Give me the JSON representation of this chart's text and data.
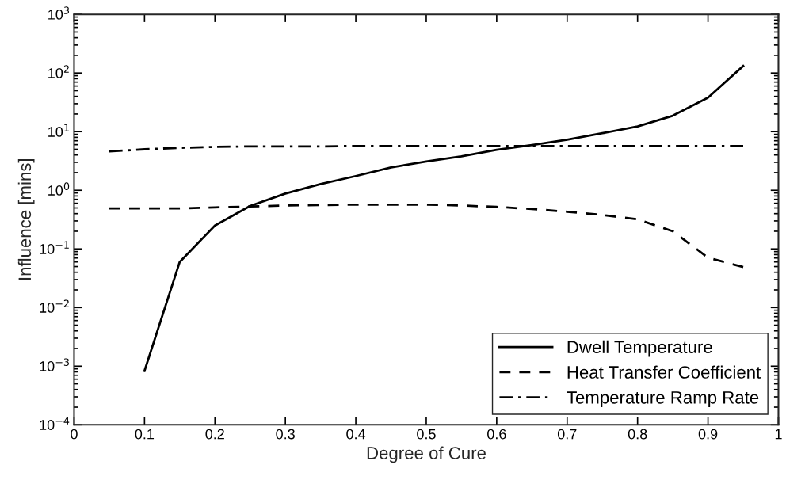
{
  "chart_data": {
    "type": "line",
    "xlabel": "Degree of Cure",
    "ylabel": "Influence [mins]",
    "log": "y",
    "grid": false,
    "legend": "bottom right",
    "xlim": [
      0,
      1
    ],
    "xticks": [
      0,
      0.1,
      0.2,
      0.3,
      0.4,
      0.5,
      0.6,
      0.7,
      0.8,
      0.9,
      1
    ],
    "ylim": [
      0.0001,
      1000
    ],
    "yticks": [
      {
        "value": 0.0001,
        "label": "10$^{−4}$"
      },
      {
        "value": 0.001,
        "label": "10$^{−3}$"
      },
      {
        "value": 0.01,
        "label": "10$^{−2}$"
      },
      {
        "value": 0.1,
        "label": "10$^{−1}$"
      },
      {
        "value": 1,
        "label": "10$^{0}$"
      },
      {
        "value": 10,
        "label": "10$^{1}$"
      },
      {
        "value": 100,
        "label": "10$^{2}$"
      },
      {
        "value": 1000,
        "label": "10$^{3}$"
      }
    ],
    "series": [
      {
        "name": "Dwell Temperature",
        "color": "#000000",
        "line_style": "solid",
        "x": [
          0.1,
          0.15,
          0.2,
          0.25,
          0.3,
          0.35,
          0.4,
          0.45,
          0.5,
          0.55,
          0.6,
          0.65,
          0.7,
          0.75,
          0.8,
          0.85,
          0.9,
          0.95
        ],
        "values": [
          0.00083,
          0.06,
          0.25,
          0.54,
          0.88,
          1.28,
          1.75,
          2.46,
          3.1,
          3.8,
          4.9,
          5.9,
          7.3,
          9.4,
          12.3,
          18.7,
          38,
          132
        ]
      },
      {
        "name": "Heat Transfer Coefficient",
        "color": "#000000",
        "line_style": "dashed",
        "x": [
          0.05,
          0.1,
          0.15,
          0.2,
          0.25,
          0.3,
          0.35,
          0.4,
          0.45,
          0.5,
          0.55,
          0.6,
          0.65,
          0.7,
          0.75,
          0.8,
          0.85,
          0.9,
          0.95
        ],
        "values": [
          0.49,
          0.49,
          0.49,
          0.51,
          0.53,
          0.55,
          0.56,
          0.57,
          0.57,
          0.57,
          0.55,
          0.52,
          0.48,
          0.43,
          0.38,
          0.32,
          0.2,
          0.071,
          0.049
        ]
      },
      {
        "name": "Temperature Ramp Rate",
        "color": "#000000",
        "line_style": "dashdot",
        "x": [
          0.05,
          0.1,
          0.15,
          0.2,
          0.25,
          0.3,
          0.35,
          0.4,
          0.45,
          0.5,
          0.55,
          0.6,
          0.65,
          0.7,
          0.75,
          0.8,
          0.85,
          0.9,
          0.95
        ],
        "values": [
          4.6,
          5.0,
          5.3,
          5.5,
          5.6,
          5.6,
          5.6,
          5.7,
          5.7,
          5.7,
          5.7,
          5.7,
          5.7,
          5.7,
          5.7,
          5.7,
          5.7,
          5.7,
          5.7
        ]
      }
    ]
  }
}
